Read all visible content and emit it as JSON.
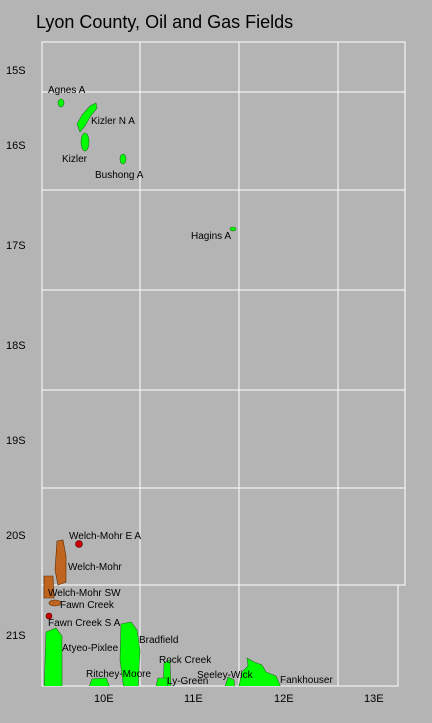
{
  "title": "Lyon County, Oil and Gas Fields",
  "township_labels": [
    "15S",
    "16S",
    "17S",
    "18S",
    "19S",
    "20S",
    "21S"
  ],
  "range_labels": [
    "10E",
    "11E",
    "12E",
    "13E"
  ],
  "fields": [
    {
      "label": "Agnes A"
    },
    {
      "label": "Kizler N A"
    },
    {
      "label": "Kizler"
    },
    {
      "label": "Bushong A"
    },
    {
      "label": "Hagins A"
    },
    {
      "label": "Welch-Mohr E A"
    },
    {
      "label": "Welch-Mohr"
    },
    {
      "label": "Welch-Mohr SW"
    },
    {
      "label": "Fawn Creek"
    },
    {
      "label": "Fawn Creek S A"
    },
    {
      "label": "Bradfield"
    },
    {
      "label": "Atyeo-Pixlee"
    },
    {
      "label": "Rock Creek"
    },
    {
      "label": "Ritchey-Moore"
    },
    {
      "label": "Seeley-Wick"
    },
    {
      "label": "Ly-Green"
    },
    {
      "label": "Fankhouser"
    }
  ]
}
